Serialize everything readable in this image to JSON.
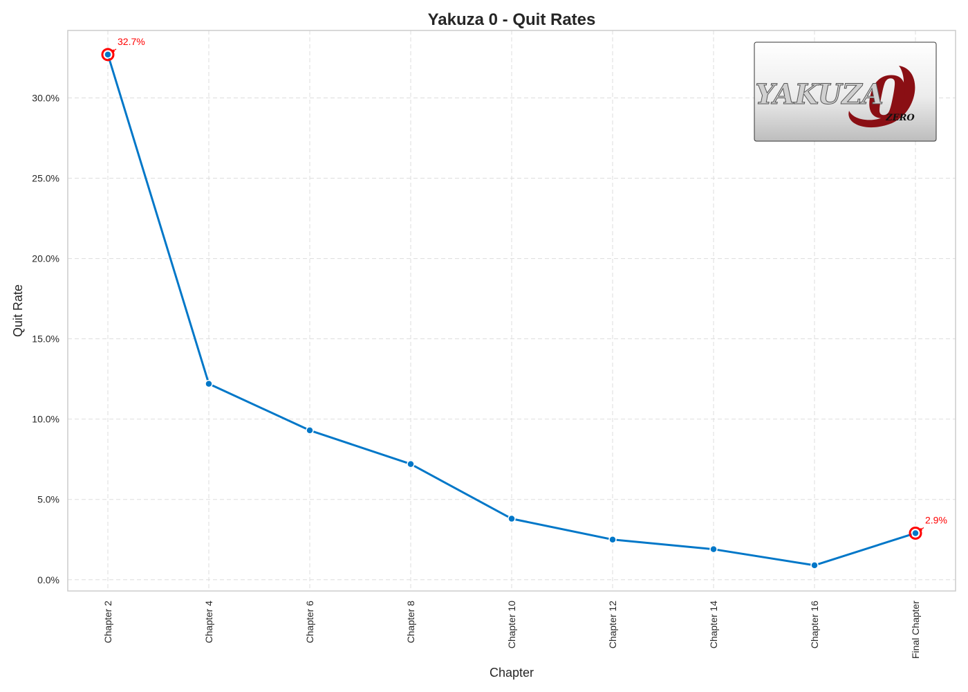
{
  "chart_data": {
    "type": "line",
    "title": "Yakuza 0 - Quit Rates",
    "xlabel": "Chapter",
    "ylabel": "Quit Rate",
    "categories": [
      "Chapter 2",
      "Chapter 4",
      "Chapter 6",
      "Chapter 8",
      "Chapter 10",
      "Chapter 12",
      "Chapter 14",
      "Chapter 16",
      "Final Chapter"
    ],
    "values": [
      32.7,
      12.2,
      9.3,
      7.2,
      3.8,
      2.5,
      1.9,
      0.9,
      2.9
    ],
    "ylim": [
      -0.7,
      34.2
    ],
    "yticks": [
      {
        "value": 0,
        "label": "0.0%"
      },
      {
        "value": 5,
        "label": "5.0%"
      },
      {
        "value": 10,
        "label": "10.0%"
      },
      {
        "value": 15,
        "label": "15.0%"
      },
      {
        "value": 20,
        "label": "20.0%"
      },
      {
        "value": 25,
        "label": "25.0%"
      },
      {
        "value": 30,
        "label": "30.0%"
      }
    ],
    "grid": true,
    "line_color": "#0077c8",
    "highlight_color": "#ff0000",
    "annotations": [
      {
        "index": 0,
        "label": "32.7%"
      },
      {
        "index": 8,
        "label": "2.9%"
      }
    ]
  },
  "logo": {
    "text": "YAKUZA",
    "numeral": "0",
    "subtext": "ZERO",
    "colors": {
      "main": "#d0d0d0",
      "accent": "#8a0f14"
    }
  }
}
